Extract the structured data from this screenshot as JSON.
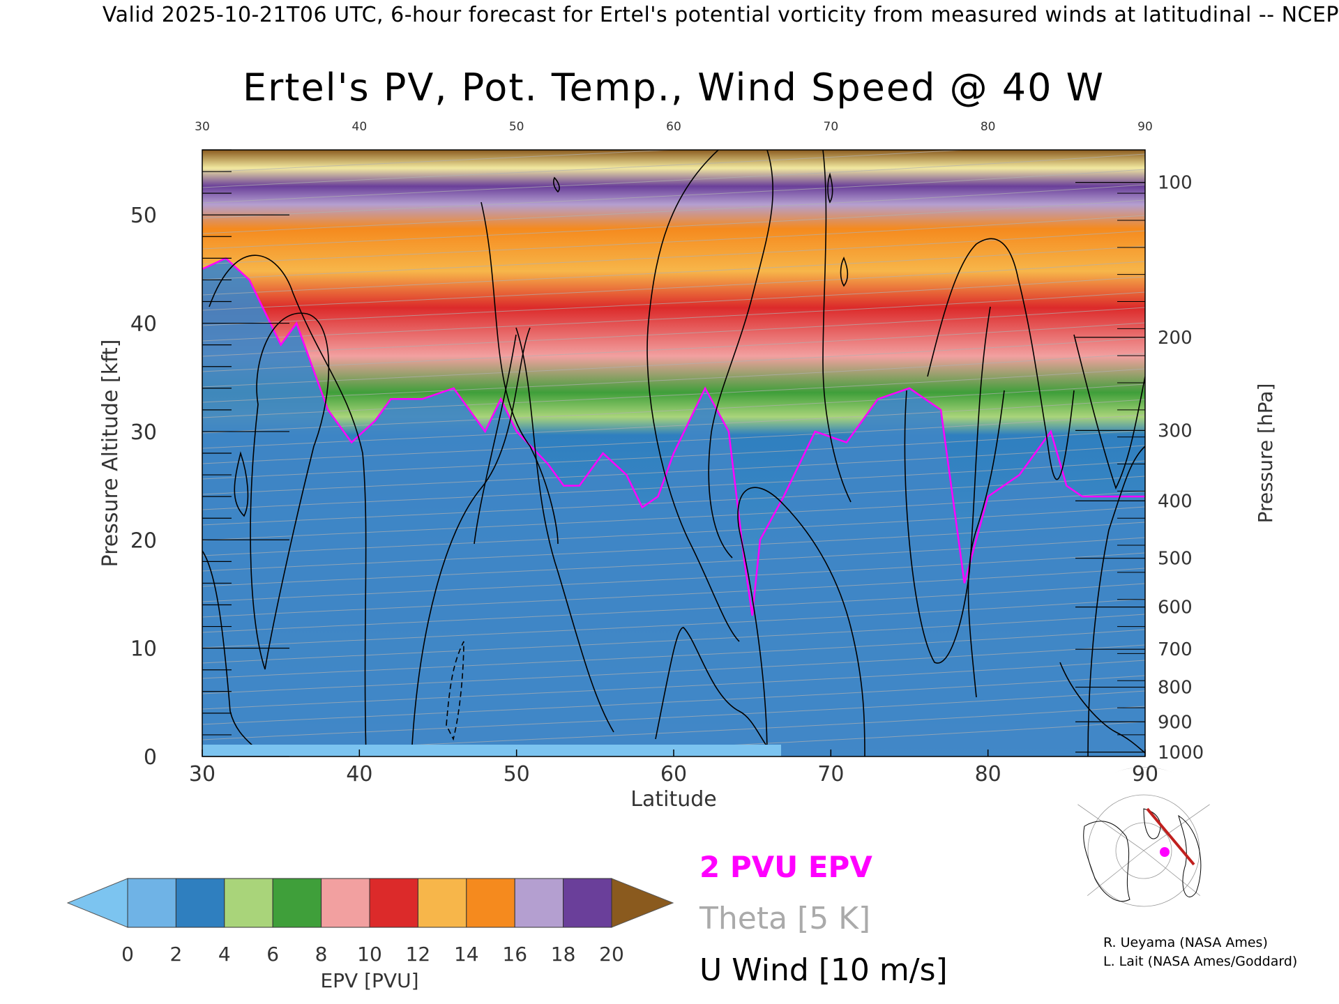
{
  "banner": "Valid 2025-10-21T06 UTC, 6-hour forecast for Ertel's potential vorticity from measured winds at latitudinal -- NCEP",
  "chart_data": {
    "type": "heatmap",
    "title": "Ertel's PV, Pot. Temp., Wind Speed @ 40 W",
    "xlabel": "Latitude",
    "ylabel": "Pressure Altitude [kft]",
    "y2label": "Pressure [hPa]",
    "xlim": [
      30,
      90
    ],
    "ylim": [
      0,
      56
    ],
    "x_ticks": [
      30,
      40,
      50,
      60,
      70,
      80,
      90
    ],
    "top_x_ticks": [
      "30",
      "40",
      "50",
      "60",
      "70",
      "80",
      "90"
    ],
    "y_ticks": [
      0,
      10,
      20,
      30,
      40,
      50
    ],
    "pressure_ticks": [
      {
        "label": "100",
        "kft": 53.0
      },
      {
        "label": "200",
        "kft": 38.7
      },
      {
        "label": "300",
        "kft": 30.1
      },
      {
        "label": "400",
        "kft": 23.6
      },
      {
        "label": "500",
        "kft": 18.3
      },
      {
        "label": "600",
        "kft": 13.8
      },
      {
        "label": "700",
        "kft": 9.9
      },
      {
        "label": "800",
        "kft": 6.4
      },
      {
        "label": "900",
        "kft": 3.2
      },
      {
        "label": "1000",
        "kft": 0.4
      }
    ],
    "tropopause_2pvu_kft": [
      {
        "lat": 30,
        "alt": 45
      },
      {
        "lat": 31.5,
        "alt": 46
      },
      {
        "lat": 33,
        "alt": 44
      },
      {
        "lat": 35,
        "alt": 38
      },
      {
        "lat": 36,
        "alt": 40
      },
      {
        "lat": 37,
        "alt": 36
      },
      {
        "lat": 38,
        "alt": 32
      },
      {
        "lat": 39.5,
        "alt": 29
      },
      {
        "lat": 41,
        "alt": 31
      },
      {
        "lat": 42,
        "alt": 33
      },
      {
        "lat": 44,
        "alt": 33
      },
      {
        "lat": 46,
        "alt": 34
      },
      {
        "lat": 48,
        "alt": 30
      },
      {
        "lat": 49,
        "alt": 33
      },
      {
        "lat": 50,
        "alt": 30
      },
      {
        "lat": 52,
        "alt": 27
      },
      {
        "lat": 53,
        "alt": 25
      },
      {
        "lat": 54,
        "alt": 25
      },
      {
        "lat": 55.5,
        "alt": 28
      },
      {
        "lat": 57,
        "alt": 26
      },
      {
        "lat": 58,
        "alt": 23
      },
      {
        "lat": 59,
        "alt": 24
      },
      {
        "lat": 60,
        "alt": 28
      },
      {
        "lat": 62,
        "alt": 34
      },
      {
        "lat": 63.5,
        "alt": 30
      },
      {
        "lat": 64.5,
        "alt": 18
      },
      {
        "lat": 65,
        "alt": 13
      },
      {
        "lat": 65.5,
        "alt": 20
      },
      {
        "lat": 67,
        "alt": 24
      },
      {
        "lat": 69,
        "alt": 30
      },
      {
        "lat": 71,
        "alt": 29
      },
      {
        "lat": 73,
        "alt": 33
      },
      {
        "lat": 75,
        "alt": 34
      },
      {
        "lat": 77,
        "alt": 32
      },
      {
        "lat": 78.5,
        "alt": 16
      },
      {
        "lat": 80,
        "alt": 24
      },
      {
        "lat": 82,
        "alt": 26
      },
      {
        "lat": 84,
        "alt": 30
      },
      {
        "lat": 85,
        "alt": 25
      },
      {
        "lat": 86,
        "alt": 24
      },
      {
        "lat": 88,
        "alt": 24
      },
      {
        "lat": 90,
        "alt": 24
      }
    ],
    "legend": {
      "colorbar_label": "EPV [PVU]",
      "colorbar_ticks": [
        "0",
        "2",
        "4",
        "6",
        "8",
        "10",
        "12",
        "14",
        "16",
        "18",
        "20"
      ],
      "colorbar_range": [
        0,
        20
      ],
      "colorbar_step": 2,
      "colorbar_colors": [
        "#6fb3e6",
        "#2f7fbf",
        "#a9d47a",
        "#3f9f3a",
        "#f2a0a0",
        "#dc2a2a",
        "#f7b64a",
        "#f58a1e",
        "#b49fd0",
        "#6a3f9a",
        "#f2e9a0"
      ],
      "colorbar_under": "#7cc4f0",
      "colorbar_over": "#8a5a1e",
      "epv_label": "2 PVU EPV",
      "theta_label": "Theta [5 K]",
      "wind_label": "U Wind [10 m/s]"
    },
    "colors": {
      "epv_2pvu": "#ff00ff",
      "theta": "#b0b0b0",
      "wind": "#000000",
      "track": "#c0201e"
    }
  },
  "credits": [
    "R. Ueyama (NASA Ames)",
    "L. Lait (NASA Ames/Goddard)"
  ],
  "inset_map": {
    "icon": "polar-stereographic-map-icon"
  }
}
